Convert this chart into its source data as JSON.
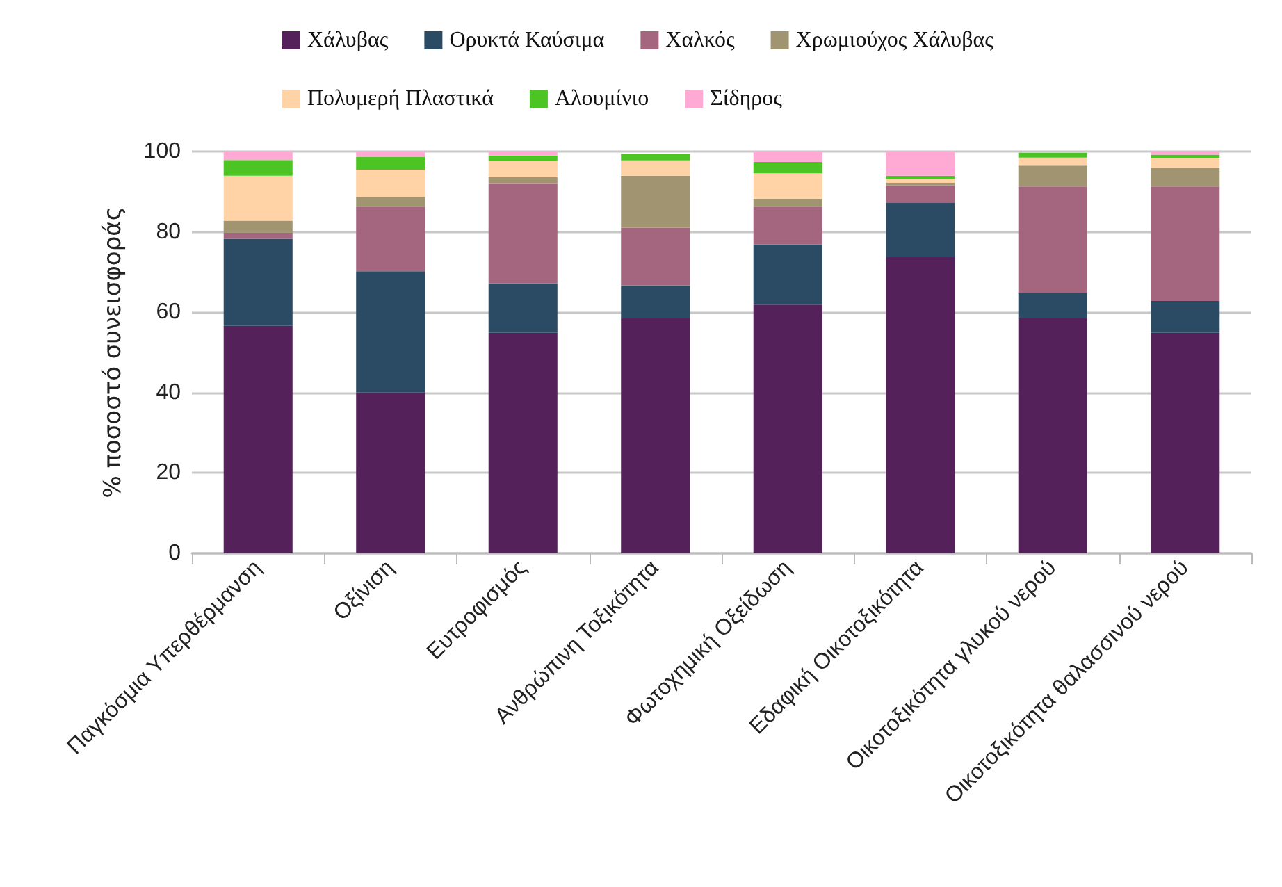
{
  "chart_data": {
    "type": "bar",
    "stacked": true,
    "ylabel": "% ποσοστό συνεισφοράς",
    "categories": [
      "Παγκόσμια Υπερθέρμανση",
      "Οξίνιση",
      "Ευτροφισμός",
      "Ανθρώπινη Τοξικότητα",
      "Φωτοχημική Οξείδωση",
      "Εδαφική Οικοτοξικότητα",
      "Οικοτοξικότητα γλυκού νερού",
      "Οικοτοξικότητα θαλασσινού νερού"
    ],
    "series": [
      {
        "name": "Χάλυβας",
        "color": "#54215a",
        "values": [
          56.6,
          40.0,
          54.9,
          58.5,
          61.9,
          73.7,
          58.6,
          54.9
        ]
      },
      {
        "name": "Ορυκτά Καύσιμα",
        "color": "#2b4a63",
        "values": [
          21.7,
          30.2,
          12.3,
          8.2,
          15.0,
          13.5,
          6.2,
          7.9
        ]
      },
      {
        "name": "Χαλκός",
        "color": "#a4667f",
        "values": [
          1.5,
          16.1,
          24.9,
          14.3,
          9.4,
          4.4,
          26.5,
          28.5
        ]
      },
      {
        "name": "Χρωμιούχος Χάλυβας",
        "color": "#a09570",
        "values": [
          3.0,
          2.3,
          1.5,
          13.0,
          2.0,
          0.6,
          5.2,
          4.7
        ]
      },
      {
        "name": "Πολυμερή Πλαστικά",
        "color": "#ffd3a6",
        "values": [
          11.2,
          6.9,
          4.0,
          3.8,
          6.3,
          1.0,
          2.0,
          2.4
        ]
      },
      {
        "name": "Αλουμίνιο",
        "color": "#4cc524",
        "values": [
          3.9,
          3.2,
          1.4,
          1.7,
          2.8,
          0.8,
          1.2,
          0.8
        ]
      },
      {
        "name": "Σίδηρος",
        "color": "#ffaad5",
        "values": [
          2.1,
          1.3,
          1.0,
          null,
          2.6,
          6.0,
          null,
          0.8
        ]
      }
    ],
    "ylim": [
      0,
      100
    ],
    "yticks": [
      0,
      20,
      40,
      60,
      80,
      100
    ],
    "grid": "y",
    "legend": "top"
  }
}
